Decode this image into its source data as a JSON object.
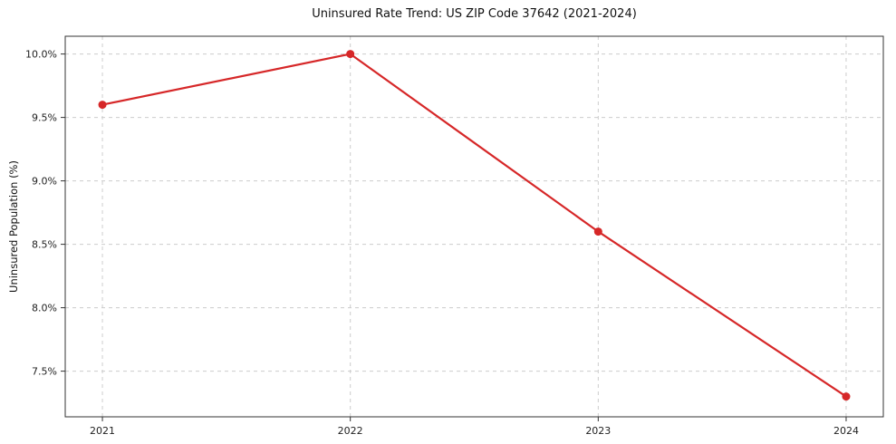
{
  "chart": {
    "title": "Uninsured Rate Trend: US ZIP Code 37642 (2021-2024)",
    "ylabel": "Uninsured Population (%)"
  },
  "chart_data": {
    "type": "line",
    "title": "Uninsured Rate Trend: US ZIP Code 37642 (2021-2024)",
    "xlabel": "",
    "ylabel": "Uninsured Population (%)",
    "x": [
      2021,
      2022,
      2023,
      2024
    ],
    "values": [
      9.6,
      10.0,
      8.6,
      7.3
    ],
    "series_name": "Uninsured Population (%)",
    "xticks": [
      2021,
      2022,
      2023,
      2024
    ],
    "xtick_labels": [
      "2021",
      "2022",
      "2023",
      "2024"
    ],
    "yticks": [
      7.5,
      8.0,
      8.5,
      9.0,
      9.5,
      10.0
    ],
    "ytick_labels": [
      "7.5%",
      "8.0%",
      "8.5%",
      "9.0%",
      "9.5%",
      "10.0%"
    ],
    "xlim": [
      2020.85,
      2024.15
    ],
    "ylim": [
      7.14,
      10.14
    ],
    "grid": true,
    "grid_style": "dashed",
    "legend_position": "none",
    "line_color": "#d62728",
    "marker_color": "#d62728",
    "grid_color": "#cccccc",
    "axis_color": "#333333",
    "marker_radius": 4.5,
    "line_width": 2.2
  }
}
